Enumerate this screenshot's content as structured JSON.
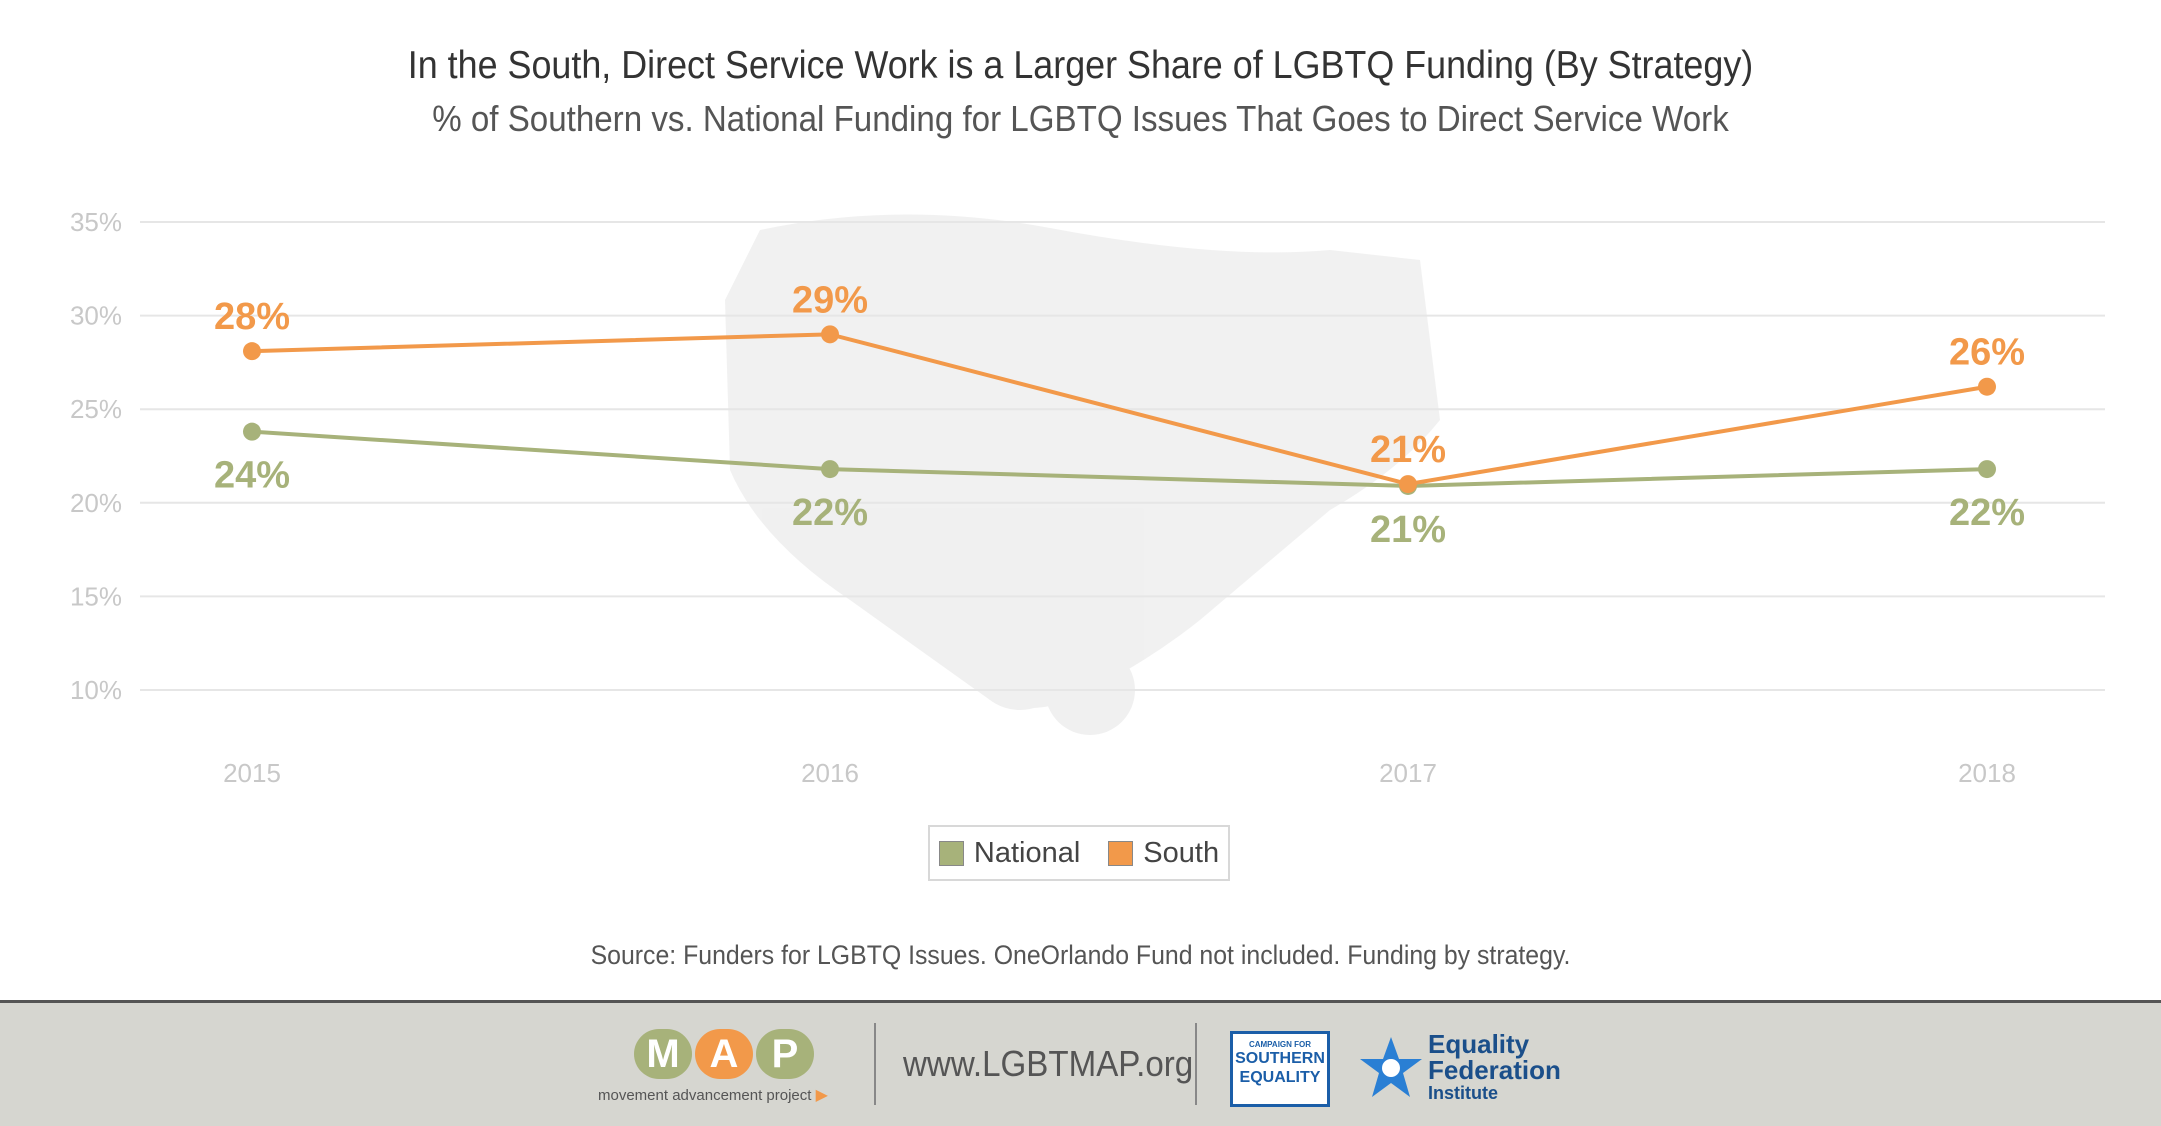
{
  "header": {
    "title": "In the South, Direct Service Work is a Larger Share of LGBTQ Funding (By Strategy)",
    "subtitle": "% of Southern vs. National Funding for LGBTQ Issues That Goes to Direct Service Work"
  },
  "chart_data": {
    "type": "line",
    "title": "In the South, Direct Service Work is a Larger Share of LGBTQ Funding (By Strategy)",
    "subtitle": "% of Southern vs. National Funding for LGBTQ Issues That Goes to Direct Service Work",
    "categories": [
      "2015",
      "2016",
      "2017",
      "2018"
    ],
    "series": [
      {
        "name": "National",
        "values": [
          23.8,
          21.8,
          20.9,
          21.8
        ],
        "labels": [
          "24%",
          "22%",
          "21%",
          "22%"
        ],
        "color": "#a7b27a"
      },
      {
        "name": "South",
        "values": [
          28.1,
          29.0,
          21.0,
          26.2
        ],
        "labels": [
          "28%",
          "29%",
          "21%",
          "26%"
        ],
        "color": "#f2994a"
      }
    ],
    "yticks": [
      "10%",
      "15%",
      "20%",
      "25%",
      "30%",
      "35%"
    ],
    "ytick_values": [
      10,
      15,
      20,
      25,
      30,
      35
    ],
    "ylim": [
      10,
      35
    ],
    "grid": true,
    "legend": "bottom-center"
  },
  "legend": {
    "items": [
      "National",
      "South"
    ]
  },
  "source": "Source: Funders for LGBTQ Issues. OneOrlando Fund not included. Funding by strategy.",
  "footer": {
    "map_letters": [
      "M",
      "A",
      "P"
    ],
    "map_letter_colors": [
      "#a7b27a",
      "#f2994a",
      "#a7b27a"
    ],
    "map_tagline": "movement advancement project",
    "url": "www.LGBTMAP.org",
    "cse_small": "CAMPAIGN FOR",
    "cse_line1": "SOUTHERN",
    "cse_line2": "EQUALITY",
    "efi_line1": "Equality",
    "efi_line2": "Federation",
    "efi_line3": "Institute"
  },
  "colors": {
    "national": "#a7b27a",
    "south": "#f2994a",
    "grid": "#e6e6e6",
    "footer_bg": "#d6d6d0"
  }
}
